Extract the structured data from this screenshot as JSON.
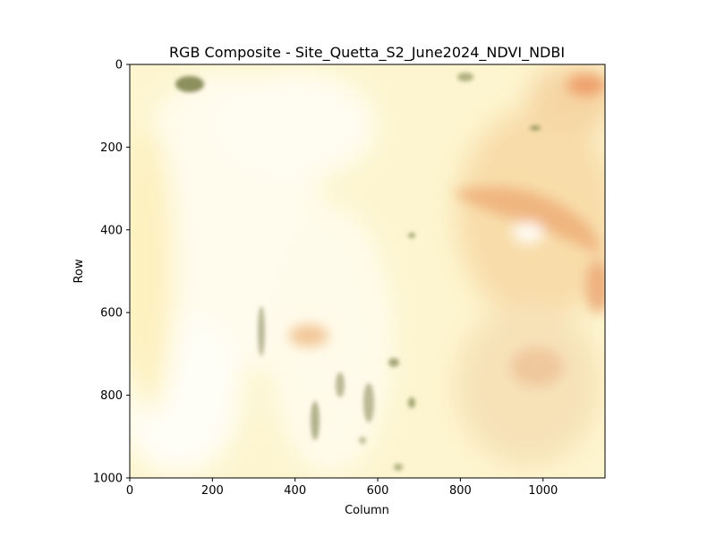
{
  "chart_data": {
    "type": "heatmap",
    "title": "RGB Composite - Site_Quetta_S2_June2024_NDVI_NDBI",
    "xlabel": "Column",
    "ylabel": "Row",
    "xlim": [
      0,
      1150
    ],
    "ylim": [
      1000,
      0
    ],
    "x_ticks": [
      "0",
      "200",
      "400",
      "600",
      "800",
      "1000"
    ],
    "y_ticks": [
      "0",
      "200",
      "400",
      "600",
      "800",
      "1000"
    ],
    "grid": false,
    "image_description_colors": {
      "base": "#fdf7d2",
      "pale": "#fffbea",
      "warm": "#f3c993",
      "orange": "#eba46e",
      "vegetation": "#7e8450"
    }
  }
}
